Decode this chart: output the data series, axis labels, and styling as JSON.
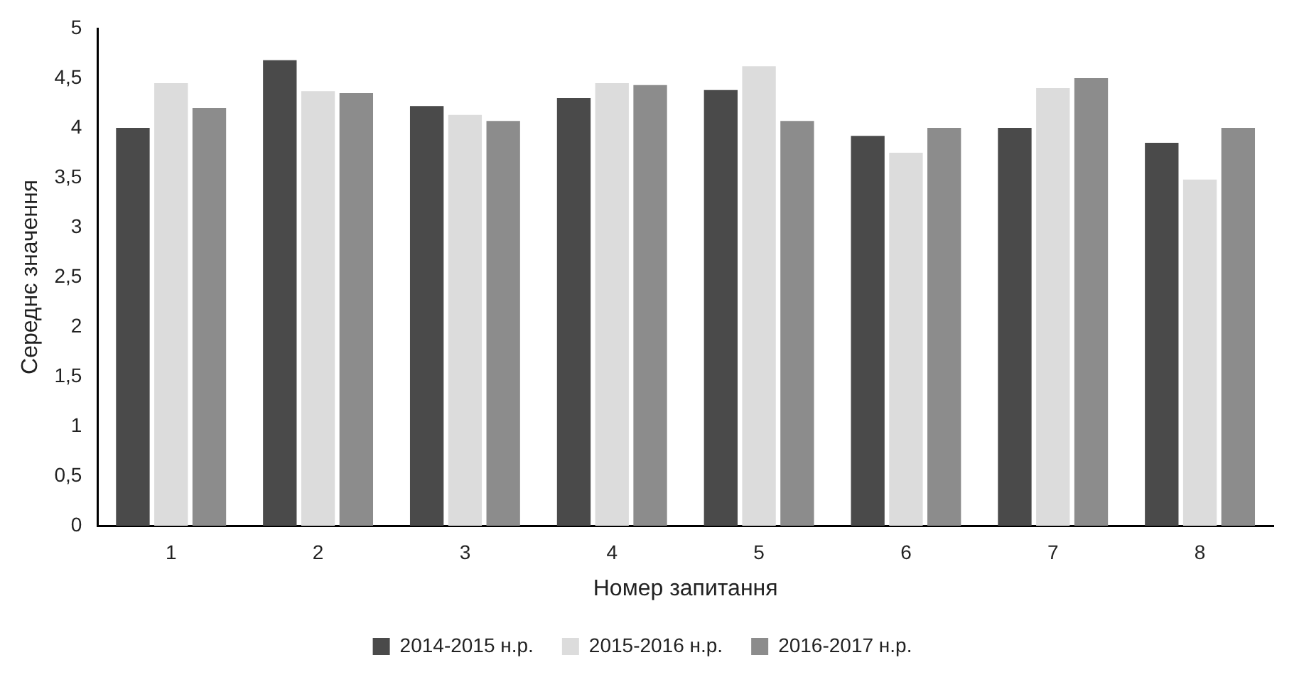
{
  "chart_data": {
    "type": "bar",
    "xlabel": "Номер запитання",
    "ylabel": "Середнє значення",
    "categories": [
      "1",
      "2",
      "3",
      "4",
      "5",
      "6",
      "7",
      "8"
    ],
    "series": [
      {
        "name": "2014-2015 н.р.",
        "color": "#4a4a4a",
        "values": [
          4.0,
          4.68,
          4.22,
          4.3,
          4.38,
          3.92,
          4.0,
          3.85
        ]
      },
      {
        "name": "2015-2016 н.р.",
        "color": "#dcdcdc",
        "values": [
          4.45,
          4.37,
          4.13,
          4.45,
          4.62,
          3.75,
          4.4,
          3.48
        ]
      },
      {
        "name": "2016-2017 н.р.",
        "color": "#8c8c8c",
        "values": [
          4.2,
          4.35,
          4.07,
          4.43,
          4.07,
          4.0,
          4.5,
          4.0
        ]
      }
    ],
    "ylim": [
      0,
      5
    ],
    "yticks": [
      0,
      {
        "value": 0.5,
        "label": "0,5"
      },
      1,
      {
        "value": 1.5,
        "label": "1,5"
      },
      2,
      {
        "value": 2.5,
        "label": "2,5"
      },
      3,
      {
        "value": 3.5,
        "label": "3,5"
      },
      4,
      {
        "value": 4.5,
        "label": "4,5"
      },
      5
    ],
    "grid": false,
    "legend": "bottom"
  }
}
